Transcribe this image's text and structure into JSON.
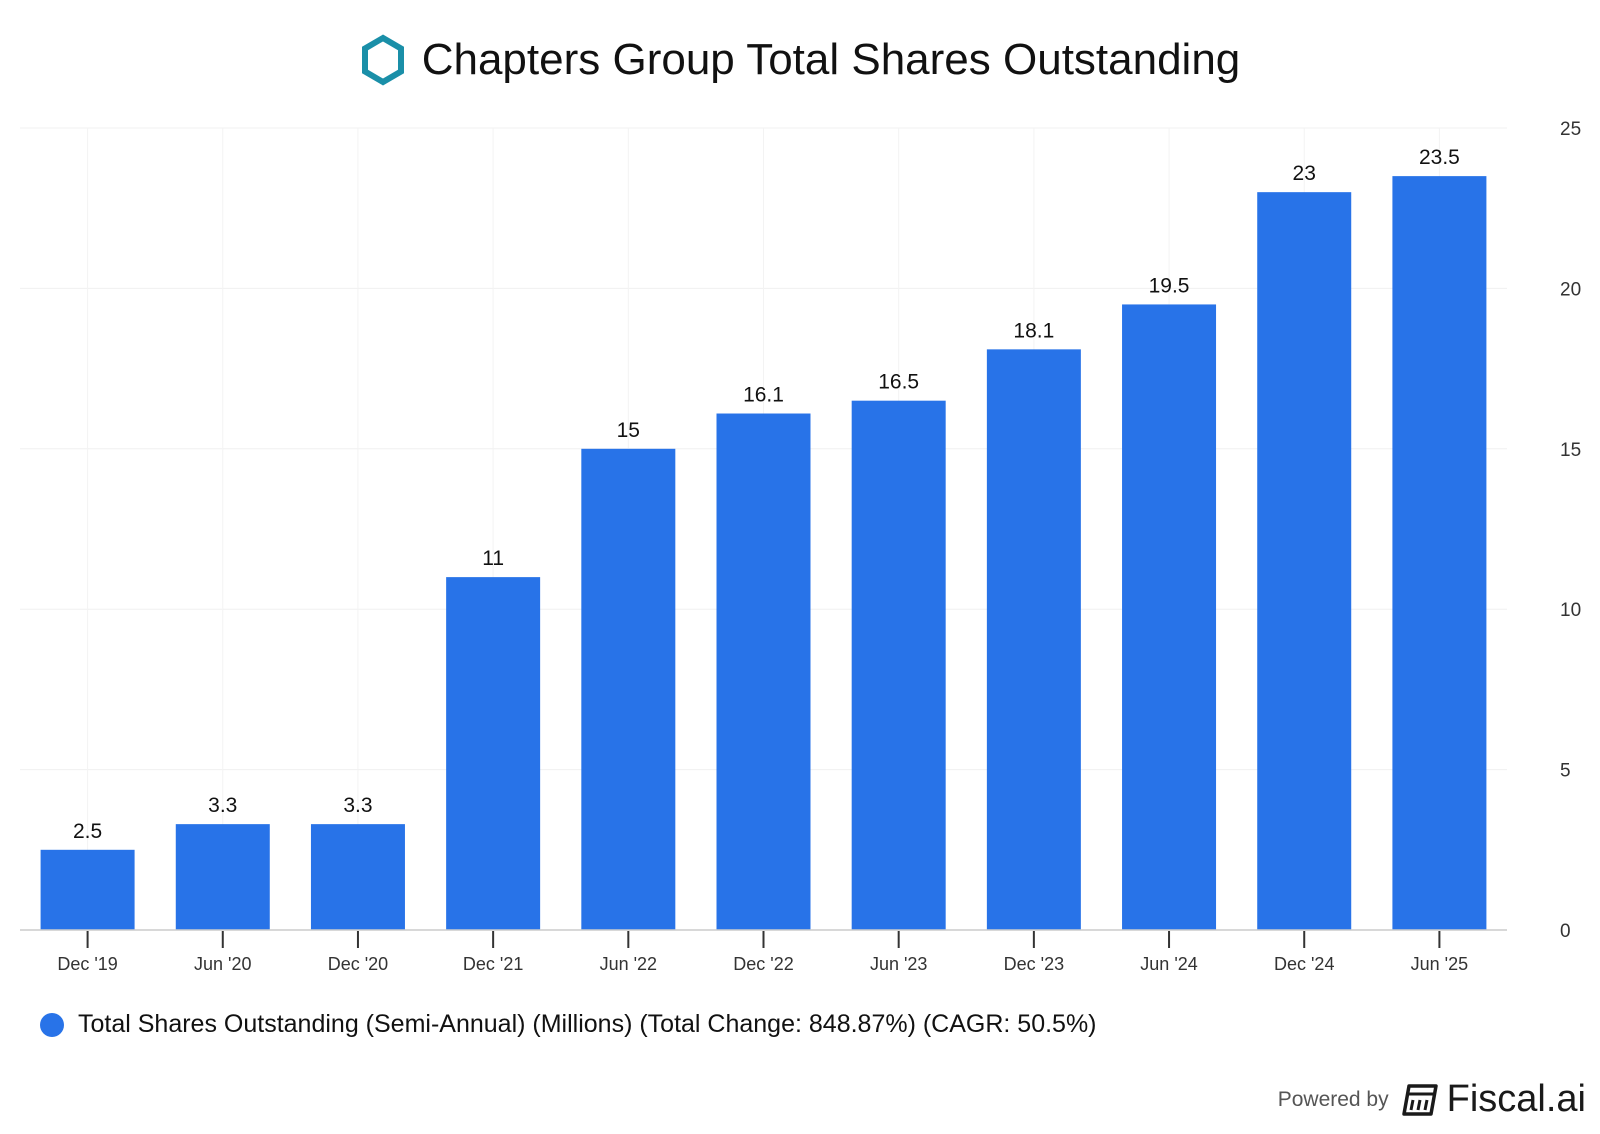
{
  "header": {
    "title": "Chapters Group Total Shares Outstanding",
    "logo_icon": "hexagon-logo-icon",
    "logo_color": "#1a8fa8"
  },
  "chart_data": {
    "type": "bar",
    "title": "Chapters Group Total Shares Outstanding",
    "categories": [
      "Dec '19",
      "Jun '20",
      "Dec '20",
      "Dec '21",
      "Jun '22",
      "Dec '22",
      "Jun '23",
      "Dec '23",
      "Jun '24",
      "Dec '24",
      "Jun '25"
    ],
    "series": [
      {
        "name": "Total Shares Outstanding (Semi-Annual) (Millions) (Total Change: 848.87%) (CAGR: 50.5%)",
        "values": [
          2.5,
          3.3,
          3.3,
          11,
          15,
          16.1,
          16.5,
          18.1,
          19.5,
          23,
          23.5
        ],
        "labels": [
          "2.5",
          "3.3",
          "3.3",
          "11",
          "15",
          "16.1",
          "16.5",
          "18.1",
          "19.5",
          "23",
          "23.5"
        ],
        "color": "#2873e8"
      }
    ],
    "ylim": [
      0,
      25
    ],
    "yticks": [
      0,
      5,
      10,
      15,
      20,
      25
    ],
    "yaxis_position": "right",
    "grid": true,
    "legend_position": "bottom-left",
    "xlabel": "",
    "ylabel": ""
  },
  "legend": {
    "label": "Total Shares Outstanding (Semi-Annual) (Millions) (Total Change: 848.87%) (CAGR: 50.5%)",
    "color": "#2873e8"
  },
  "footer": {
    "powered_by": "Powered by",
    "brand": "Fiscal.ai",
    "brand_icon": "fiscal-logo-icon"
  }
}
